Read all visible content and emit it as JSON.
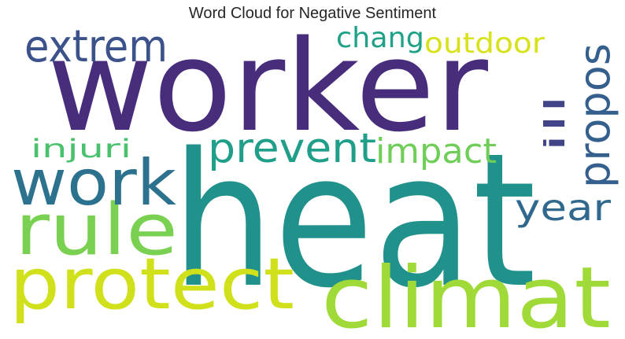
{
  "title": "Word Cloud for Negative Sentiment",
  "words": [
    {
      "key": "worker",
      "text": "worker",
      "color": "#472d7b"
    },
    {
      "key": "heat",
      "text": "heat",
      "color": "#21918c"
    },
    {
      "key": "climat",
      "text": "climat",
      "color": "#a0da39"
    },
    {
      "key": "protect",
      "text": "protect",
      "color": "#d0e11c"
    },
    {
      "key": "rule",
      "text": "rule",
      "color": "#7ad151"
    },
    {
      "key": "work",
      "text": "work",
      "color": "#2c728e"
    },
    {
      "key": "extrem",
      "text": "extrem",
      "color": "#3b528b"
    },
    {
      "key": "prevent",
      "text": "prevent",
      "color": "#1f9e89"
    },
    {
      "key": "impact",
      "text": "impact",
      "color": "#6ece58"
    },
    {
      "key": "injuri",
      "text": "injuri",
      "color": "#4ac16d"
    },
    {
      "key": "chang",
      "text": "chang",
      "color": "#1fa187"
    },
    {
      "key": "outdoor",
      "text": "outdoor",
      "color": "#d8e219"
    },
    {
      "key": "propos",
      "text": "propos",
      "color": "#355f8d"
    },
    {
      "key": "ill",
      "text": "ill",
      "color": "#414487"
    },
    {
      "key": "year",
      "text": "year",
      "color": "#31688e"
    }
  ]
}
